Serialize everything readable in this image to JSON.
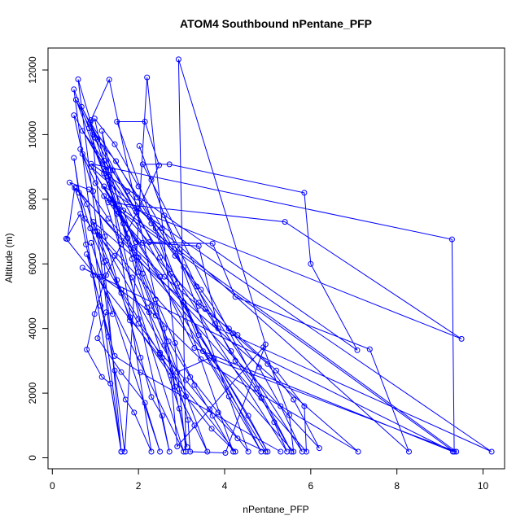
{
  "chart_data": {
    "type": "line",
    "title": "ATOM4 Southbound nPentane_PFP",
    "xlabel": "nPentane_PFP",
    "ylabel": "Altitude (m)",
    "xlim": [
      -0.1,
      10.5
    ],
    "ylim": [
      -340,
      12680
    ],
    "x_ticks": [
      0,
      2,
      4,
      6,
      8,
      10
    ],
    "y_ticks": [
      0,
      2000,
      4000,
      6000,
      8000,
      10000,
      12000
    ],
    "grid": false,
    "marker": "open-circle",
    "color": "#0000ff",
    "series": [
      {
        "values": [
          [
            0.35,
            6770
          ],
          [
            0.52,
            8350
          ],
          [
            0.75,
            7400
          ],
          [
            1.08,
            6870
          ],
          [
            1.45,
            6250
          ],
          [
            1.85,
            5580
          ],
          [
            2.25,
            4500
          ],
          [
            2.6,
            3480
          ],
          [
            2.95,
            2130
          ],
          [
            3.15,
            1170
          ],
          [
            3.2,
            190
          ],
          [
            4.02,
            150
          ],
          [
            4.95,
            3510
          ],
          [
            2.93,
            12330
          ],
          [
            3.1,
            190
          ],
          [
            2.2,
            11770
          ],
          [
            1.68,
            190
          ],
          [
            0.6,
            11710
          ],
          [
            1.0,
            9900
          ],
          [
            1.3,
            8700
          ],
          [
            1.55,
            7600
          ],
          [
            1.85,
            6150
          ],
          [
            2.2,
            4650
          ],
          [
            2.55,
            3100
          ],
          [
            2.95,
            1520
          ],
          [
            3.13,
            330
          ],
          [
            1.32,
            11700
          ],
          [
            0.9,
            10450
          ],
          [
            1.6,
            190
          ],
          [
            0.5,
            11400
          ],
          [
            0.85,
            10200
          ],
          [
            1.2,
            8800
          ],
          [
            1.65,
            7250
          ],
          [
            2.1,
            5700
          ],
          [
            2.6,
            4000
          ],
          [
            2.85,
            2200
          ],
          [
            3.3,
            1000
          ],
          [
            3.6,
            190
          ],
          [
            0.55,
            11080
          ],
          [
            0.95,
            10000
          ],
          [
            1.4,
            8900
          ],
          [
            1.95,
            7600
          ],
          [
            2.5,
            6200
          ],
          [
            3.05,
            4800
          ],
          [
            3.5,
            3300
          ],
          [
            4.1,
            1900
          ],
          [
            4.85,
            190
          ],
          [
            0.68,
            10860
          ],
          [
            1.05,
            9850
          ],
          [
            1.48,
            9180
          ],
          [
            1.97,
            8050
          ],
          [
            2.4,
            7100
          ],
          [
            2.9,
            5400
          ],
          [
            3.4,
            3800
          ],
          [
            3.75,
            3070
          ],
          [
            4.55,
            1300
          ],
          [
            5.0,
            190
          ],
          [
            0.5,
            10600
          ],
          [
            0.7,
            9400
          ],
          [
            0.95,
            8250
          ],
          [
            1.22,
            6850
          ],
          [
            1.5,
            5500
          ],
          [
            1.8,
            4250
          ],
          [
            2.05,
            3100
          ],
          [
            2.3,
            1880
          ],
          [
            2.55,
            1300
          ],
          [
            2.72,
            190
          ],
          [
            0.98,
            10500
          ],
          [
            1.45,
            9700
          ],
          [
            2.0,
            8400
          ],
          [
            2.55,
            7100
          ],
          [
            3.05,
            5900
          ],
          [
            3.55,
            4600
          ],
          [
            4.15,
            3300
          ],
          [
            4.75,
            2150
          ],
          [
            5.15,
            1100
          ],
          [
            5.45,
            190
          ],
          [
            0.7,
            10120
          ],
          [
            1.2,
            9200
          ],
          [
            1.75,
            8250
          ],
          [
            2.3,
            7250
          ],
          [
            2.85,
            6250
          ],
          [
            3.45,
            5200
          ],
          [
            4.1,
            4000
          ],
          [
            4.8,
            2800
          ],
          [
            5.3,
            1600
          ],
          [
            5.8,
            190
          ],
          [
            0.88,
            10380
          ],
          [
            1.25,
            8900
          ],
          [
            1.65,
            7650
          ],
          [
            2.0,
            6200
          ],
          [
            2.4,
            4900
          ],
          [
            2.85,
            3550
          ],
          [
            3.3,
            2250
          ],
          [
            3.72,
            1300
          ],
          [
            4.2,
            190
          ],
          [
            1.5,
            10400
          ],
          [
            2.15,
            10400
          ],
          [
            2.48,
            9050
          ],
          [
            2.0,
            7700
          ],
          [
            1.6,
            6600
          ],
          [
            1.25,
            5650
          ],
          [
            0.98,
            4450
          ],
          [
            0.8,
            3350
          ],
          [
            1.15,
            2500
          ],
          [
            1.35,
            2300
          ],
          [
            1.6,
            190
          ],
          [
            0.5,
            9280
          ],
          [
            0.62,
            8200
          ],
          [
            0.88,
            7100
          ],
          [
            1.2,
            6050
          ],
          [
            1.6,
            5100
          ],
          [
            2.0,
            4150
          ],
          [
            2.5,
            3250
          ],
          [
            3.1,
            2400
          ],
          [
            3.65,
            1500
          ],
          [
            4.3,
            600
          ],
          [
            4.95,
            190
          ],
          [
            0.65,
            9550
          ],
          [
            1.0,
            8500
          ],
          [
            1.5,
            7550
          ],
          [
            2.1,
            6650
          ],
          [
            2.75,
            5700
          ],
          [
            3.4,
            4800
          ],
          [
            4.2,
            3850
          ],
          [
            5.0,
            2900
          ],
          [
            5.6,
            1800
          ],
          [
            6.2,
            300
          ],
          [
            0.4,
            8520
          ],
          [
            0.85,
            8300
          ],
          [
            1.3,
            7400
          ],
          [
            1.9,
            6500
          ],
          [
            2.6,
            5600
          ],
          [
            3.4,
            4700
          ],
          [
            4.3,
            3800
          ],
          [
            5.2,
            2700
          ],
          [
            5.85,
            1600
          ],
          [
            5.9,
            190
          ],
          [
            0.55,
            8350
          ],
          [
            0.8,
            7850
          ],
          [
            1.0,
            7000
          ],
          [
            1.25,
            6100
          ],
          [
            1.6,
            5200
          ],
          [
            2.0,
            4300
          ],
          [
            2.5,
            3200
          ],
          [
            3.1,
            1900
          ],
          [
            3.7,
            900
          ],
          [
            4.25,
            190
          ],
          [
            0.32,
            6780
          ],
          [
            0.65,
            7550
          ],
          [
            0.78,
            6600
          ],
          [
            0.95,
            5650
          ],
          [
            1.12,
            4700
          ],
          [
            1.3,
            3750
          ],
          [
            1.45,
            2700
          ],
          [
            1.7,
            1800
          ],
          [
            1.9,
            1400
          ],
          [
            2.3,
            190
          ],
          [
            1.15,
            10120
          ],
          [
            1.35,
            8900
          ],
          [
            1.55,
            7800
          ],
          [
            1.75,
            6800
          ],
          [
            2.0,
            5750
          ],
          [
            2.3,
            4700
          ],
          [
            2.7,
            3600
          ],
          [
            3.2,
            2500
          ],
          [
            3.85,
            1400
          ],
          [
            4.55,
            190
          ],
          [
            2.02,
            9650
          ],
          [
            2.3,
            8600
          ],
          [
            2.6,
            7500
          ],
          [
            2.95,
            6450
          ],
          [
            3.35,
            5300
          ],
          [
            3.78,
            4150
          ],
          [
            4.25,
            3000
          ],
          [
            4.85,
            1850
          ],
          [
            5.55,
            190
          ],
          [
            2.1,
            9080
          ],
          [
            2.72,
            9080
          ],
          [
            5.85,
            8200
          ],
          [
            6.0,
            6000
          ],
          [
            7.08,
            3330
          ],
          [
            0.9,
            9100
          ],
          [
            9.28,
            6760
          ],
          [
            9.33,
            190
          ],
          [
            1.3,
            7900
          ],
          [
            5.4,
            7300
          ],
          [
            9.5,
            3680
          ],
          [
            1.35,
            8000
          ],
          [
            2.25,
            6670
          ],
          [
            3.72,
            6630
          ],
          [
            4.25,
            4980
          ],
          [
            7.37,
            3360
          ],
          [
            8.28,
            190
          ],
          [
            0.9,
            9000
          ],
          [
            1.95,
            6670
          ],
          [
            3.4,
            6550
          ],
          [
            3.85,
            4000
          ],
          [
            10.2,
            190
          ],
          [
            1.2,
            8400
          ],
          [
            2.5,
            5600
          ],
          [
            3.3,
            3400
          ],
          [
            9.3,
            190
          ],
          [
            0.7,
            5880
          ],
          [
            1.1,
            5600
          ],
          [
            1.4,
            4450
          ],
          [
            1.25,
            4500
          ],
          [
            1.05,
            3700
          ],
          [
            1.6,
            2650
          ],
          [
            2.15,
            1700
          ],
          [
            2.5,
            190
          ],
          [
            0.9,
            6650
          ],
          [
            1.15,
            5600
          ],
          [
            2.4,
            4400
          ],
          [
            3.45,
            3050
          ],
          [
            7.1,
            190
          ],
          [
            0.95,
            7300
          ],
          [
            1.8,
            4350
          ],
          [
            2.75,
            2550
          ],
          [
            2.9,
            350
          ],
          [
            4.9,
            3420
          ],
          [
            5.5,
            1320
          ],
          [
            5.6,
            190
          ],
          [
            1.05,
            7000
          ],
          [
            2.9,
            2650
          ],
          [
            3.65,
            3090
          ],
          [
            9.38,
            190
          ],
          [
            1.2,
            8100
          ],
          [
            3.05,
            190
          ],
          [
            0.8,
            6300
          ],
          [
            1.45,
            3150
          ],
          [
            2.05,
            2640
          ],
          [
            5.3,
            190
          ]
        ]
      }
    ]
  }
}
